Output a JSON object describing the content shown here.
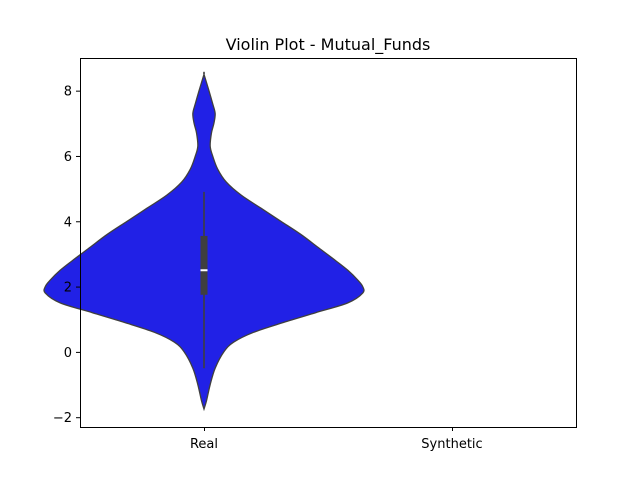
{
  "chart_data": {
    "type": "violin",
    "title": "Violin Plot - Mutual_Funds",
    "xlabel": "",
    "ylabel": "",
    "categories": [
      "Real",
      "Synthetic"
    ],
    "ylim": [
      -2.3,
      9.0
    ],
    "yticks": [
      -2,
      0,
      2,
      4,
      6,
      8
    ],
    "ytick_labels": [
      "−2",
      "0",
      "2",
      "4",
      "6",
      "8"
    ],
    "grid": false,
    "legend": "none",
    "series": [
      {
        "category": "Real",
        "fill_color": "#2121e6",
        "edge_color": "#3f3f3f",
        "box": {
          "whisker_low": -0.5,
          "q1": 1.75,
          "median": 2.5,
          "q3": 3.55,
          "whisker_high": 4.9
        },
        "density_profile": [
          {
            "y": -1.75,
            "half_width": 0.0
          },
          {
            "y": -1.5,
            "half_width": 0.01
          },
          {
            "y": -1.0,
            "half_width": 0.025
          },
          {
            "y": -0.5,
            "half_width": 0.045
          },
          {
            "y": 0.0,
            "half_width": 0.08
          },
          {
            "y": 0.3,
            "half_width": 0.12
          },
          {
            "y": 0.6,
            "half_width": 0.2
          },
          {
            "y": 0.9,
            "half_width": 0.32
          },
          {
            "y": 1.2,
            "half_width": 0.45
          },
          {
            "y": 1.5,
            "half_width": 0.58
          },
          {
            "y": 1.8,
            "half_width": 0.64
          },
          {
            "y": 2.0,
            "half_width": 0.64
          },
          {
            "y": 2.2,
            "half_width": 0.62
          },
          {
            "y": 2.5,
            "half_width": 0.58
          },
          {
            "y": 2.8,
            "half_width": 0.53
          },
          {
            "y": 3.2,
            "half_width": 0.46
          },
          {
            "y": 3.6,
            "half_width": 0.39
          },
          {
            "y": 4.0,
            "half_width": 0.31
          },
          {
            "y": 4.4,
            "half_width": 0.23
          },
          {
            "y": 4.8,
            "half_width": 0.15
          },
          {
            "y": 5.2,
            "half_width": 0.09
          },
          {
            "y": 5.6,
            "half_width": 0.055
          },
          {
            "y": 6.0,
            "half_width": 0.035
          },
          {
            "y": 6.3,
            "half_width": 0.025
          },
          {
            "y": 6.7,
            "half_width": 0.03
          },
          {
            "y": 7.0,
            "half_width": 0.04
          },
          {
            "y": 7.3,
            "half_width": 0.045
          },
          {
            "y": 7.6,
            "half_width": 0.035
          },
          {
            "y": 8.0,
            "half_width": 0.02
          },
          {
            "y": 8.5,
            "half_width": 0.0
          }
        ]
      },
      {
        "category": "Synthetic",
        "fill_color": "",
        "edge_color": "",
        "box": null,
        "density_profile": []
      }
    ]
  }
}
